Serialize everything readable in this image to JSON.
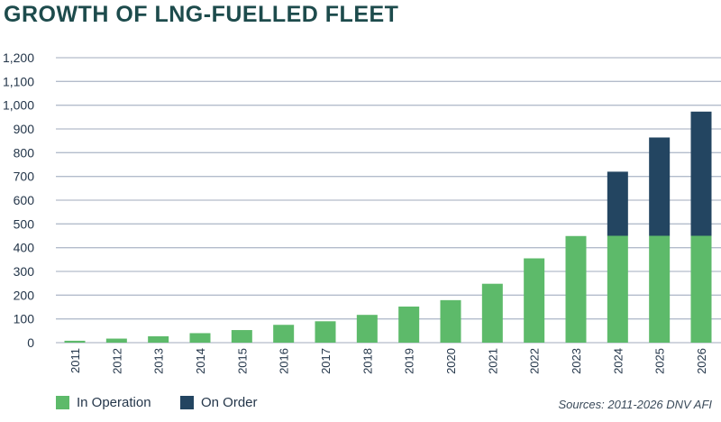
{
  "chart_data": {
    "type": "bar",
    "stacked": true,
    "title": "GROWTH OF LNG-FUELLED FLEET",
    "categories": [
      "2011",
      "2012",
      "2013",
      "2014",
      "2015",
      "2016",
      "2017",
      "2018",
      "2019",
      "2020",
      "2021",
      "2022",
      "2023",
      "2024",
      "2025",
      "2026"
    ],
    "series": [
      {
        "name": "In Operation",
        "color": "#5dba6a",
        "values": [
          8,
          17,
          27,
          40,
          53,
          75,
          90,
          117,
          152,
          179,
          248,
          355,
          449,
          450,
          450,
          450
        ]
      },
      {
        "name": "On Order",
        "color": "#234561",
        "values": [
          0,
          0,
          0,
          0,
          0,
          0,
          0,
          0,
          0,
          0,
          0,
          0,
          0,
          270,
          414,
          523
        ]
      }
    ],
    "yticks": [
      "0",
      "100",
      "200",
      "300",
      "400",
      "500",
      "600",
      "700",
      "800",
      "900",
      "1,000",
      "1,100",
      "1,200"
    ],
    "ylim": [
      0,
      1200
    ],
    "grid": true,
    "legend_position": "bottom-left",
    "source": "Sources: 2011-2026 DNV AFI"
  }
}
